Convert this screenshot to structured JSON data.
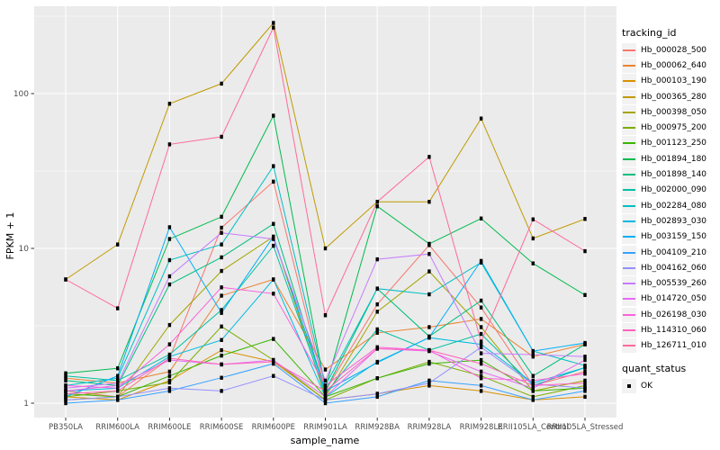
{
  "colors": {
    "panel_background": "#EBEBEB",
    "gridline": "#FFFFFF",
    "tick_text": "#4D4D4D",
    "tick_mark": "#333333",
    "point": "#000000"
  },
  "legends": {
    "tracking_id": {
      "title": "tracking_id"
    },
    "quant_status": {
      "title": "quant_status",
      "items": [
        {
          "label": "OK"
        }
      ]
    }
  },
  "chart_data": {
    "type": "line",
    "title": "",
    "xlabel": "sample_name",
    "ylabel": "FPKM + 1",
    "y_scale": "log10",
    "ylim": [
      0.81,
      360
    ],
    "y_ticks": [
      {
        "label": "1",
        "value": 1
      },
      {
        "label": "10",
        "value": 10
      },
      {
        "label": "100",
        "value": 100
      }
    ],
    "y_minor_breaks": [
      3.162,
      31.623,
      316.23
    ],
    "grid": "on",
    "legend_position": "right",
    "point_marker": {
      "shape": "square",
      "color": "#000000",
      "meaning": "quant_status OK"
    },
    "categories": [
      "PB350LA",
      "RRIM600LA",
      "RRIM600LE",
      "RRIM600SE",
      "RRIM600PE",
      "RRIM901LA",
      "RRIM928BA",
      "RRIM928LA",
      "RRIM928LE",
      "RRII105LA_Control",
      "RRII105LA_Stressed"
    ],
    "series": [
      {
        "name": "Hb_000028_500",
        "color": "#F8766D",
        "values": [
          1.2,
          1.1,
          1.95,
          13.6,
          27.0,
          1.2,
          4.35,
          10.5,
          4.15,
          1.3,
          1.6
        ]
      },
      {
        "name": "Hb_000062_640",
        "color": "#EA8331",
        "values": [
          1.45,
          1.35,
          1.6,
          4.95,
          6.3,
          1.65,
          2.85,
          3.1,
          3.5,
          2.0,
          2.4
        ]
      },
      {
        "name": "Hb_000103_190",
        "color": "#D89000",
        "values": [
          1.1,
          1.05,
          1.4,
          2.2,
          1.85,
          1.05,
          1.15,
          1.3,
          1.2,
          1.05,
          1.1
        ]
      },
      {
        "name": "Hb_000365_280",
        "color": "#C09B00",
        "values": [
          6.3,
          10.6,
          86.0,
          116.0,
          286.0,
          10.0,
          20.0,
          20.0,
          69.0,
          11.6,
          15.5
        ]
      },
      {
        "name": "Hb_000398_050",
        "color": "#A3A500",
        "values": [
          1.05,
          1.1,
          3.2,
          7.15,
          11.9,
          1.1,
          3.9,
          7.1,
          3.1,
          1.2,
          1.4
        ]
      },
      {
        "name": "Hb_000975_200",
        "color": "#7CAE00",
        "values": [
          1.1,
          1.2,
          1.36,
          3.13,
          1.9,
          1.05,
          1.45,
          1.85,
          1.5,
          1.1,
          1.3
        ]
      },
      {
        "name": "Hb_001123_250",
        "color": "#39B600",
        "values": [
          1.15,
          1.1,
          1.5,
          2.03,
          2.6,
          1.1,
          1.45,
          1.8,
          1.9,
          1.2,
          1.25
        ]
      },
      {
        "name": "Hb_001894_180",
        "color": "#00BB4E",
        "values": [
          1.56,
          1.68,
          11.5,
          16.0,
          72.0,
          1.25,
          18.7,
          10.7,
          15.6,
          8.0,
          5.0
        ]
      },
      {
        "name": "Hb_001898_140",
        "color": "#00BF7D",
        "values": [
          1.4,
          1.3,
          5.85,
          8.75,
          14.4,
          1.2,
          5.5,
          2.7,
          4.6,
          1.5,
          2.4
        ]
      },
      {
        "name": "Hb_002000_090",
        "color": "#00C1A3",
        "values": [
          1.5,
          1.4,
          2.06,
          4.0,
          10.4,
          1.15,
          3.0,
          2.2,
          2.8,
          1.3,
          1.7
        ]
      },
      {
        "name": "Hb_002284_080",
        "color": "#00BFC4",
        "values": [
          1.3,
          1.45,
          8.4,
          10.6,
          34.0,
          1.3,
          5.5,
          5.05,
          8.1,
          2.17,
          1.75
        ]
      },
      {
        "name": "Hb_002893_030",
        "color": "#00BAE0",
        "values": [
          1.2,
          1.25,
          2.0,
          2.56,
          6.3,
          1.1,
          1.85,
          2.65,
          2.4,
          1.35,
          1.7
        ]
      },
      {
        "name": "Hb_003159_150",
        "color": "#00B0F6",
        "values": [
          1.1,
          1.5,
          13.7,
          3.83,
          11.9,
          1.2,
          1.83,
          2.66,
          8.3,
          2.17,
          2.45
        ]
      },
      {
        "name": "Hb_004109_210",
        "color": "#35A2FF",
        "values": [
          1.0,
          1.05,
          1.2,
          1.46,
          1.8,
          1.0,
          1.1,
          1.4,
          1.3,
          1.05,
          1.2
        ]
      },
      {
        "name": "Hb_004162_060",
        "color": "#9590FF",
        "values": [
          1.05,
          1.1,
          1.25,
          1.2,
          1.5,
          1.05,
          1.15,
          1.35,
          2.3,
          1.33,
          1.25
        ]
      },
      {
        "name": "Hb_005539_260",
        "color": "#C77CFF",
        "values": [
          1.25,
          1.35,
          6.6,
          12.6,
          11.5,
          1.4,
          8.5,
          9.2,
          2.1,
          2.06,
          2.0
        ]
      },
      {
        "name": "Hb_014720_050",
        "color": "#E76BF3",
        "values": [
          1.2,
          1.3,
          1.9,
          1.78,
          1.9,
          1.1,
          2.25,
          2.17,
          1.6,
          1.25,
          1.9
        ]
      },
      {
        "name": "Hb_026198_030",
        "color": "#FA62DB",
        "values": [
          1.3,
          1.25,
          2.4,
          5.6,
          5.1,
          1.3,
          2.3,
          2.2,
          1.45,
          1.4,
          1.55
        ]
      },
      {
        "name": "Hb_114310_060",
        "color": "#FF62BC",
        "values": [
          1.15,
          1.2,
          1.95,
          1.78,
          1.85,
          1.2,
          2.25,
          2.2,
          1.8,
          1.3,
          1.35
        ]
      },
      {
        "name": "Hb_126711_010",
        "color": "#FF6A98",
        "values": [
          6.3,
          4.1,
          47.0,
          52.6,
          267.0,
          3.7,
          20.0,
          39.0,
          2.5,
          15.4,
          9.6
        ]
      }
    ]
  }
}
